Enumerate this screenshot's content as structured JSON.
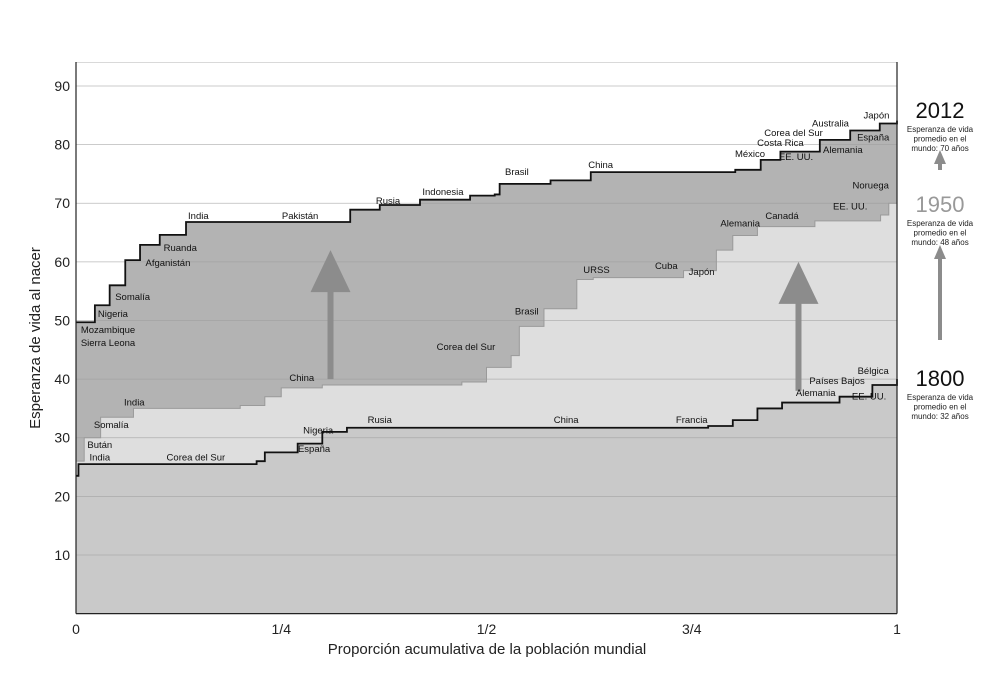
{
  "chart_data": {
    "type": "area",
    "xlabel": "Proporción acumulativa de la población mundial",
    "ylabel": "Esperanza de vida al nacer",
    "xlim": [
      0,
      1
    ],
    "ylim": [
      0,
      94
    ],
    "x_ticks": [
      {
        "v": 0,
        "label": "0"
      },
      {
        "v": 0.25,
        "label": "1/4"
      },
      {
        "v": 0.5,
        "label": "1/2"
      },
      {
        "v": 0.75,
        "label": "3/4"
      },
      {
        "v": 1,
        "label": "1"
      }
    ],
    "y_ticks": [
      10,
      20,
      30,
      40,
      50,
      60,
      70,
      80,
      90
    ],
    "grid": true,
    "series": [
      {
        "name": "2012",
        "color": "#b3b3b3",
        "points": [
          [
            0,
            49.7
          ],
          [
            0.023,
            52.6
          ],
          [
            0.041,
            56
          ],
          [
            0.06,
            60.3
          ],
          [
            0.078,
            62.9
          ],
          [
            0.102,
            64.6
          ],
          [
            0.134,
            66.8
          ],
          [
            0.321,
            66.8
          ],
          [
            0.334,
            68.9
          ],
          [
            0.37,
            69.7
          ],
          [
            0.419,
            70.6
          ],
          [
            0.48,
            71.3
          ],
          [
            0.51,
            71.5
          ],
          [
            0.516,
            73.3
          ],
          [
            0.578,
            73.9
          ],
          [
            0.627,
            75.3
          ],
          [
            0.803,
            75.7
          ],
          [
            0.834,
            77.4
          ],
          [
            0.858,
            78.8
          ],
          [
            0.906,
            80.8
          ],
          [
            0.943,
            82.4
          ],
          [
            0.979,
            83.6
          ],
          [
            1,
            84.1
          ]
        ]
      },
      {
        "name": "1950",
        "color": "#dedede",
        "points": [
          [
            0,
            26
          ],
          [
            0.01,
            30
          ],
          [
            0.03,
            33.5
          ],
          [
            0.07,
            35
          ],
          [
            0.2,
            35.5
          ],
          [
            0.23,
            37
          ],
          [
            0.25,
            38.5
          ],
          [
            0.3,
            39
          ],
          [
            0.47,
            39.5
          ],
          [
            0.5,
            42
          ],
          [
            0.53,
            44
          ],
          [
            0.54,
            49
          ],
          [
            0.57,
            52
          ],
          [
            0.61,
            57
          ],
          [
            0.63,
            57.3
          ],
          [
            0.74,
            58.5
          ],
          [
            0.78,
            62
          ],
          [
            0.8,
            64.5
          ],
          [
            0.83,
            66
          ],
          [
            0.9,
            67
          ],
          [
            0.98,
            68
          ],
          [
            0.99,
            70
          ],
          [
            1,
            72
          ]
        ]
      },
      {
        "name": "1800",
        "color": "#c9c9c9",
        "points": [
          [
            0,
            23.5
          ],
          [
            0.003,
            25.5
          ],
          [
            0.22,
            26
          ],
          [
            0.23,
            27.5
          ],
          [
            0.27,
            29
          ],
          [
            0.3,
            31
          ],
          [
            0.33,
            31.7
          ],
          [
            0.77,
            32
          ],
          [
            0.8,
            33
          ],
          [
            0.83,
            35
          ],
          [
            0.86,
            36
          ],
          [
            0.93,
            37
          ],
          [
            0.97,
            39
          ],
          [
            1,
            40
          ]
        ]
      }
    ],
    "annotations": [
      {
        "text": "India",
        "x": 0.149,
        "y": 67.8
      },
      {
        "text": "Pakistán",
        "x": 0.273,
        "y": 67.8
      },
      {
        "text": "Rusia",
        "x": 0.38,
        "y": 70.4
      },
      {
        "text": "Indonesia",
        "x": 0.447,
        "y": 71.9
      },
      {
        "text": "Brasil",
        "x": 0.537,
        "y": 75.3
      },
      {
        "text": "China",
        "x": 0.639,
        "y": 76.5
      },
      {
        "text": "México",
        "x": 0.821,
        "y": 78.4
      },
      {
        "text": "Costa Rica",
        "x": 0.858,
        "y": 80.3
      },
      {
        "text": "Corea del Sur",
        "x": 0.874,
        "y": 82
      },
      {
        "text": "Australia",
        "x": 0.919,
        "y": 83.6
      },
      {
        "text": "Japón",
        "x": 0.975,
        "y": 85
      },
      {
        "text": "España",
        "x": 0.971,
        "y": 81.2
      },
      {
        "text": "Alemania",
        "x": 0.934,
        "y": 79.1
      },
      {
        "text": "EE. UU.",
        "x": 0.877,
        "y": 77.9
      },
      {
        "text": "Ruanda",
        "x": 0.127,
        "y": 62.4
      },
      {
        "text": "Afganistán",
        "x": 0.112,
        "y": 59.8
      },
      {
        "text": "Somalía",
        "x": 0.069,
        "y": 54
      },
      {
        "text": "Nigeria",
        "x": 0.045,
        "y": 51.1
      },
      {
        "text": "Mozambique",
        "x": 0.039,
        "y": 48.4
      },
      {
        "text": "Sierra Leona",
        "x": 0.039,
        "y": 46.2
      },
      {
        "text": "Noruega",
        "x": 0.968,
        "y": 73
      },
      {
        "text": "EE. UU.",
        "x": 0.943,
        "y": 69.4
      },
      {
        "text": "Canadá",
        "x": 0.86,
        "y": 67.8
      },
      {
        "text": "Alemania",
        "x": 0.809,
        "y": 66.5
      },
      {
        "text": "Japón",
        "x": 0.762,
        "y": 58.3
      },
      {
        "text": "Cuba",
        "x": 0.719,
        "y": 59.3
      },
      {
        "text": "URSS",
        "x": 0.634,
        "y": 58.6
      },
      {
        "text": "Brasil",
        "x": 0.549,
        "y": 51.5
      },
      {
        "text": "Corea del Sur",
        "x": 0.475,
        "y": 45.5
      },
      {
        "text": "China",
        "x": 0.275,
        "y": 40.2
      },
      {
        "text": "India",
        "x": 0.071,
        "y": 36
      },
      {
        "text": "Somalía",
        "x": 0.043,
        "y": 32.2
      },
      {
        "text": "Bután",
        "x": 0.029,
        "y": 28.8
      },
      {
        "text": "India",
        "x": 0.029,
        "y": 26.6
      },
      {
        "text": "Corea del Sur",
        "x": 0.146,
        "y": 26.6
      },
      {
        "text": "Nigeria",
        "x": 0.295,
        "y": 31.2
      },
      {
        "text": "España",
        "x": 0.29,
        "y": 28.1
      },
      {
        "text": "Rusia",
        "x": 0.37,
        "y": 33
      },
      {
        "text": "China",
        "x": 0.597,
        "y": 33
      },
      {
        "text": "Francia",
        "x": 0.75,
        "y": 33
      },
      {
        "text": "Alemania",
        "x": 0.901,
        "y": 37.6
      },
      {
        "text": "Países Bajos",
        "x": 0.927,
        "y": 39.7
      },
      {
        "text": "Bélgica",
        "x": 0.971,
        "y": 41.4
      },
      {
        "text": "EE. UU.",
        "x": 0.966,
        "y": 37
      }
    ],
    "arrows": [
      {
        "x": 0.31,
        "from": 40,
        "to": 62
      },
      {
        "x": 0.88,
        "from": 38,
        "to": 60
      }
    ],
    "legend": [
      {
        "year": "2012",
        "line1": "Esperanza de vida",
        "line2": "promedio en el",
        "line3": "mundo: 70 años",
        "color": "#111111"
      },
      {
        "year": "1950",
        "line1": "Esperanza de vida",
        "line2": "promedio en el",
        "line3": "mundo: 48 años",
        "color": "#999999"
      },
      {
        "year": "1800",
        "line1": "Esperanza de vida",
        "line2": "promedio en el",
        "line3": "mundo: 32 años",
        "color": "#111111"
      }
    ],
    "legend_placement": "right"
  }
}
